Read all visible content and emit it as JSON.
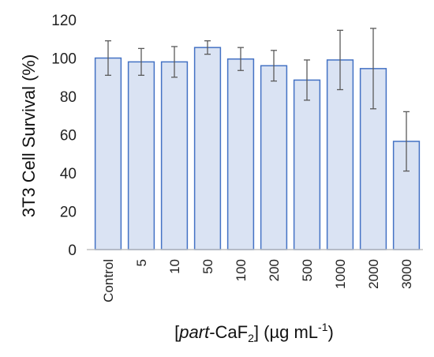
{
  "chart_data": {
    "type": "bar",
    "categories": [
      "Control",
      "5",
      "10",
      "50",
      "100",
      "200",
      "500",
      "1000",
      "2000",
      "3000"
    ],
    "values": [
      100,
      98,
      98,
      105.5,
      99.5,
      96,
      88.5,
      99,
      94.5,
      56.5
    ],
    "errors": [
      9,
      7,
      8,
      3.5,
      6,
      8,
      10.5,
      15.5,
      21,
      15.5
    ],
    "ylim": [
      0,
      120
    ],
    "yticks": [
      0,
      20,
      40,
      60,
      80,
      100,
      120
    ],
    "ylabel": "3T3 Cell Survival (%)",
    "xlabel": {
      "open": "[",
      "italic": "part",
      "main": "-CaF",
      "sub": "2",
      "close": "] (µg mL",
      "sup": "-1",
      "end": ")"
    },
    "grid": false,
    "colors": {
      "bar_fill": "#dae3f3",
      "bar_edge": "#4472c4",
      "error": "#5a5a5a",
      "axis": "#bfbfbf"
    }
  }
}
